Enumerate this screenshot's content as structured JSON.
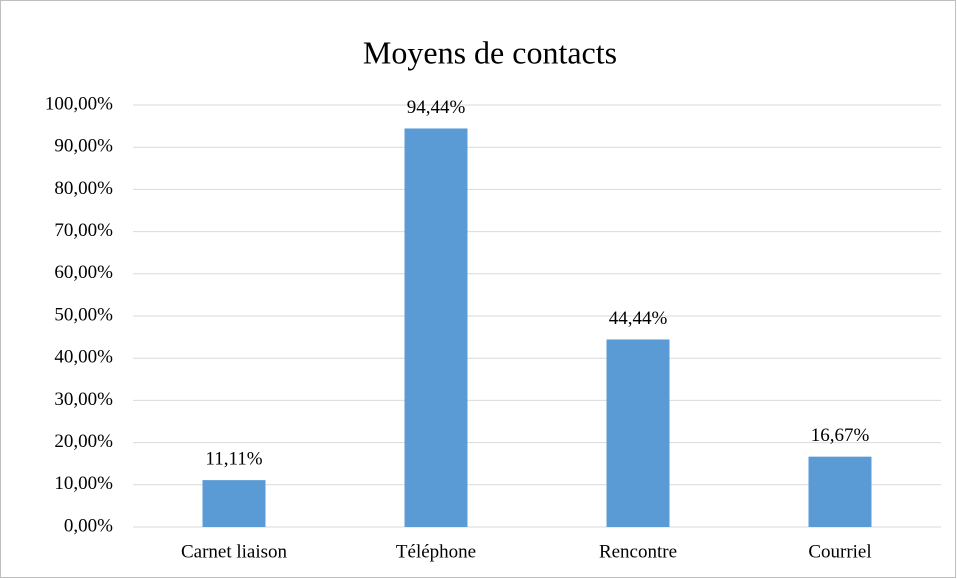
{
  "chart_data": {
    "type": "bar",
    "title": "Moyens de contacts",
    "categories": [
      "Carnet liaison",
      "Téléphone",
      "Rencontre",
      "Courriel"
    ],
    "values": [
      11.11,
      94.44,
      44.44,
      16.67
    ],
    "value_labels": [
      "11,11%",
      "94,44%",
      "44,44%",
      "16,67%"
    ],
    "color": "#5b9bd5",
    "ylim": [
      0,
      100
    ],
    "yticks": [
      {
        "value": 0,
        "label": "0,00%"
      },
      {
        "value": 10,
        "label": "10,00%"
      },
      {
        "value": 20,
        "label": "20,00%"
      },
      {
        "value": 30,
        "label": "30,00%"
      },
      {
        "value": 40,
        "label": "40,00%"
      },
      {
        "value": 50,
        "label": "50,00%"
      },
      {
        "value": 60,
        "label": "60,00%"
      },
      {
        "value": 70,
        "label": "70,00%"
      },
      {
        "value": 80,
        "label": "80,00%"
      },
      {
        "value": 90,
        "label": "90,00%"
      },
      {
        "value": 100,
        "label": "100,00%"
      }
    ],
    "grid": true
  }
}
